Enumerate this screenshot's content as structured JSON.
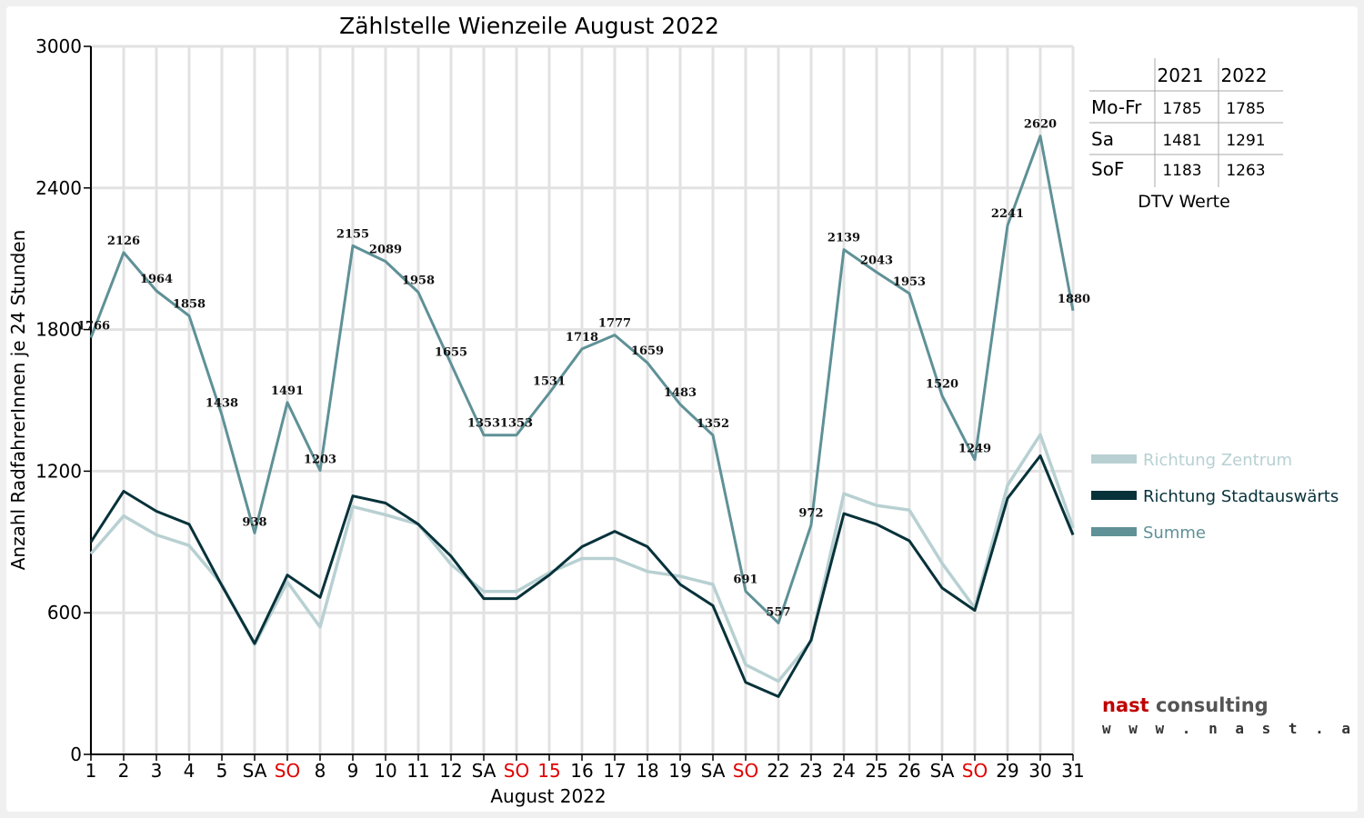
{
  "chart_data": {
    "type": "line",
    "title": "Zählstelle Wienzeile August 2022",
    "xlabel": "August 2022",
    "ylabel": "Anzahl RadfahrerInnen je 24 Stunden",
    "ylim": [
      0,
      3000
    ],
    "yticks": [
      0,
      600,
      1200,
      1800,
      2400,
      3000
    ],
    "grid": true,
    "legend_position": "right",
    "categories": [
      "1",
      "2",
      "3",
      "4",
      "5",
      "SA",
      "SO",
      "8",
      "9",
      "10",
      "11",
      "12",
      "SA",
      "SO",
      "15",
      "16",
      "17",
      "18",
      "19",
      "SA",
      "SO",
      "22",
      "23",
      "24",
      "25",
      "26",
      "SA",
      "SO",
      "29",
      "30",
      "31"
    ],
    "highlight_categories": [
      6,
      13,
      14,
      20,
      27
    ],
    "highlight_color": "#e00000",
    "series": [
      {
        "name": "Richtung Zentrum",
        "color": "#b8d0d2",
        "values": [
          850,
          1010,
          930,
          885,
          720,
          465,
          730,
          540,
          1050,
          1015,
          975,
          805,
          690,
          690,
          770,
          830,
          830,
          775,
          755,
          720,
          380,
          310,
          480,
          1105,
          1055,
          1035,
          810,
          620,
          1140,
          1355,
          960
        ]
      },
      {
        "name": "Richtung Stadtauswärts",
        "color": "#07323a",
        "values": [
          900,
          1115,
          1030,
          975,
          715,
          470,
          760,
          665,
          1095,
          1065,
          975,
          840,
          660,
          660,
          760,
          880,
          945,
          880,
          720,
          630,
          305,
          245,
          485,
          1020,
          975,
          905,
          705,
          610,
          1085,
          1265,
          930
        ]
      },
      {
        "name": "Summe",
        "color": "#5f9197",
        "values": [
          1766,
          2126,
          1964,
          1858,
          1438,
          938,
          1491,
          1203,
          2155,
          2089,
          1958,
          1655,
          1353,
          1353,
          1531,
          1718,
          1777,
          1659,
          1483,
          1352,
          691,
          557,
          972,
          2139,
          2043,
          1953,
          1520,
          1249,
          2241,
          2620,
          1880
        ]
      }
    ],
    "data_labels": [
      "1766",
      "2126",
      "1964",
      "1858",
      "1438",
      "938",
      "1491",
      "1203",
      "2155",
      "2089",
      "1958",
      "1655",
      "1353",
      "1353",
      "1531",
      "1718",
      "1777",
      "1659",
      "1483",
      "1352",
      "691",
      "557",
      "972",
      "2139",
      "2043",
      "1953",
      "1520",
      "1249",
      "2241",
      "2620",
      "1880"
    ]
  },
  "dtv_table": {
    "caption": "DTV Werte",
    "columns": [
      "",
      "2021",
      "2022"
    ],
    "rows": [
      {
        "label": "Mo-Fr",
        "v2021": "1785",
        "v2022": "1785"
      },
      {
        "label": "Sa",
        "v2021": "1481",
        "v2022": "1291"
      },
      {
        "label": "SoF",
        "v2021": "1183",
        "v2022": "1263"
      }
    ]
  },
  "logo": {
    "brand_first": "nast",
    "brand_rest": " consulting",
    "url": "w w w . n a s t . a t"
  }
}
